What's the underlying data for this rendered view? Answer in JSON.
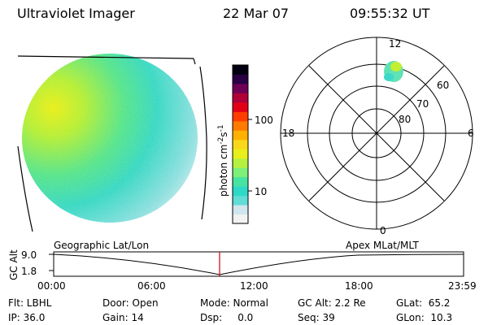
{
  "header": {
    "instrument": "Ultraviolet Imager",
    "date": "22 Mar 07",
    "time": "09:55:32 UT"
  },
  "colorbar": {
    "unit_label": "photon cm",
    "unit_exp1": "-2",
    "unit_mid": "s",
    "unit_exp2": "-1",
    "ticks": [
      "100",
      "10"
    ],
    "colors": [
      "#f2f2f2",
      "#cfe6ee",
      "#62dcd6",
      "#2ed9c8",
      "#47e3a2",
      "#7df07a",
      "#b6f13f",
      "#e8ef1a",
      "#f8d819",
      "#ffb000",
      "#ff7a00",
      "#ff3d00",
      "#e20017",
      "#b00038",
      "#6e0055",
      "#2a0044",
      "#000010"
    ]
  },
  "polar_plot": {
    "mlt_labels": {
      "top": "12",
      "left": "18",
      "right": "6",
      "bottom": "0"
    },
    "lat_labels": [
      "60",
      "70",
      "80"
    ]
  },
  "timeline": {
    "left_label": "Geographic Lat/Lon",
    "right_label": "Apex  MLat/MLT",
    "ylabel": "GC Alt",
    "yticks": [
      "9.0",
      "1.8"
    ],
    "xticks": [
      "00:00",
      "06:00",
      "12:00",
      "18:00",
      "23:59"
    ]
  },
  "status": {
    "filter": "Flt: LBHL",
    "ip": "IP: 36.0",
    "door": "Door: Open",
    "gain": "Gain: 14",
    "mode": "Mode: Normal",
    "dsp": "Dsp:     0.0",
    "gc_alt": "GC Alt: 2.2 Re",
    "seq": "Seq: 39",
    "glat": "GLat:  65.2",
    "glon": "GLon:  10.3"
  }
}
